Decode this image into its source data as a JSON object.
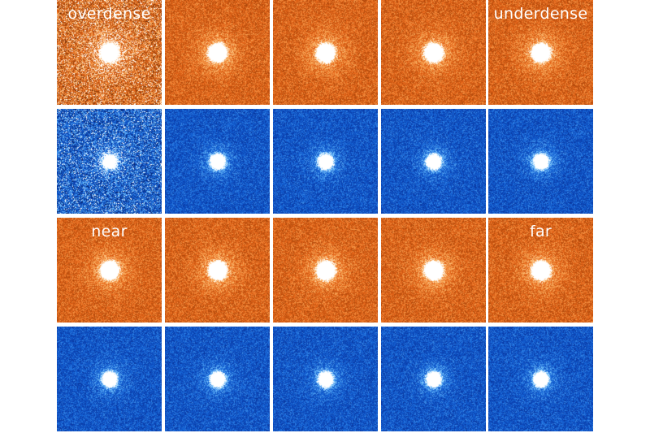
{
  "figure": {
    "rows": [
      {
        "palette": "orange",
        "labels": {
          "0": "overdense",
          "4": "underdense"
        }
      },
      {
        "palette": "blue",
        "labels": {}
      },
      {
        "palette": "orange",
        "labels": {
          "0": "near",
          "4": "far"
        }
      },
      {
        "palette": "blue",
        "labels": {}
      }
    ],
    "columns": 5,
    "colors": {
      "orange": "#e8671a",
      "blue": "#1565d8",
      "background": "#ffffff",
      "label": "#ffffff"
    }
  }
}
